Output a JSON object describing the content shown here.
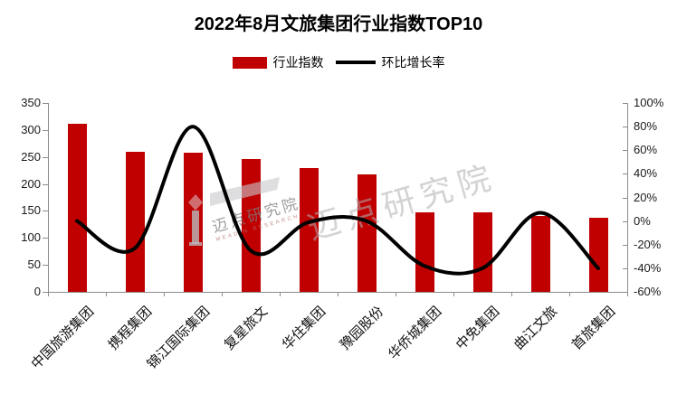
{
  "title": "2022年8月文旅集团行业指数TOP10",
  "legend": {
    "bar_label": "行业指数",
    "line_label": "环比增长率",
    "bar_color": "#C00000",
    "line_color": "#000000"
  },
  "watermark": {
    "brand_text": "迈点研究院",
    "brand_caption": "MEADIN RESEARCH"
  },
  "chart_data": {
    "type": "combo-bar-line",
    "title": "2022年8月文旅集团行业指数TOP10",
    "categories": [
      "中国旅游集团",
      "携程集团",
      "锦江国际集团",
      "复星旅文",
      "华住集团",
      "豫园股份",
      "华侨城集团",
      "中免集团",
      "曲江文旅",
      "首旅集团"
    ],
    "series": [
      {
        "name": "行业指数",
        "type": "bar",
        "axis": "left",
        "color": "#C00000",
        "values": [
          312,
          260,
          258,
          247,
          229,
          217,
          147,
          147,
          140,
          137
        ]
      },
      {
        "name": "环比增长率",
        "type": "line",
        "axis": "right",
        "color": "#000000",
        "unit": "%",
        "values": [
          0,
          -23,
          80,
          -25,
          -1,
          0,
          -38,
          -40,
          7,
          -40
        ]
      }
    ],
    "left_axis": {
      "min": 0,
      "max": 350,
      "tick_values": [
        0,
        50,
        100,
        150,
        200,
        250,
        300,
        350
      ],
      "tick_labels": [
        "0",
        "50",
        "100",
        "150",
        "200",
        "250",
        "300",
        "350"
      ]
    },
    "right_axis": {
      "min": -60,
      "max": 100,
      "tick_values": [
        -60,
        -40,
        -20,
        0,
        20,
        40,
        60,
        80,
        100
      ],
      "tick_labels": [
        "-60%",
        "-40%",
        "-20%",
        "0%",
        "20%",
        "40%",
        "60%",
        "80%",
        "100%"
      ]
    },
    "grid": false,
    "legend_position": "top"
  }
}
